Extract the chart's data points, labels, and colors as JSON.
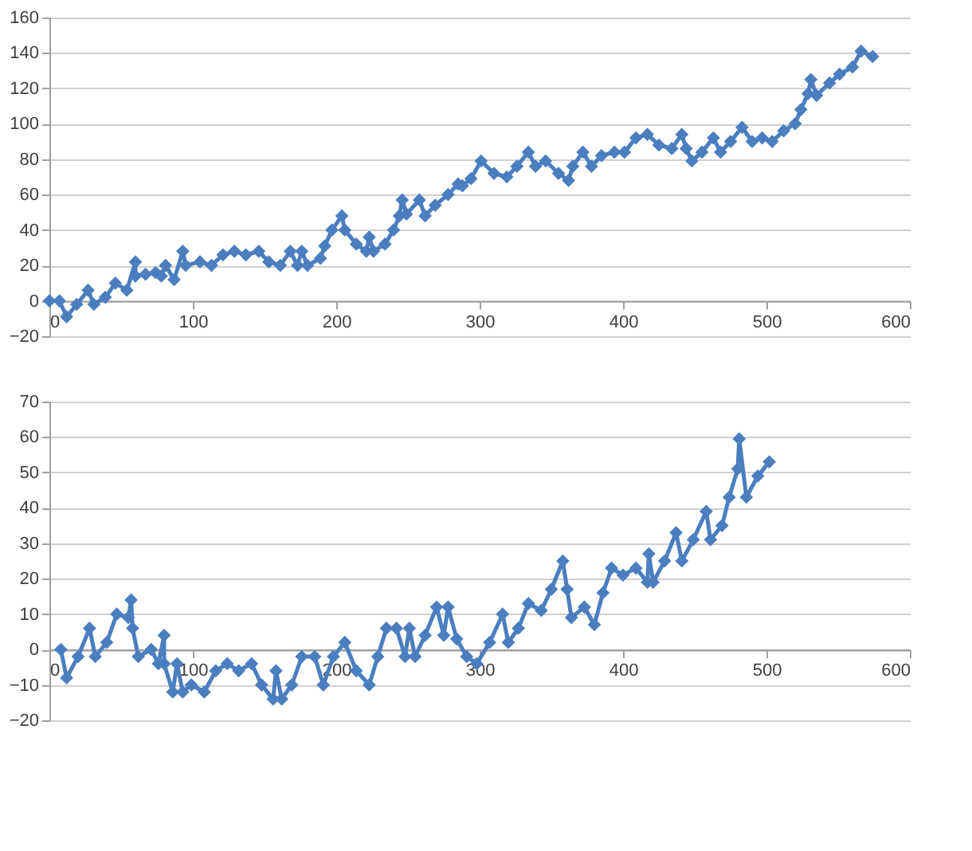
{
  "chart_data": [
    {
      "type": "line",
      "color": "#4a7ebf",
      "marker": "diamond",
      "grid": "y",
      "xlim": [
        0,
        600
      ],
      "xticks": [
        0,
        100,
        200,
        300,
        400,
        500,
        600
      ],
      "ylim": [
        -20,
        160
      ],
      "yticks": [
        -20,
        0,
        20,
        40,
        60,
        80,
        100,
        120,
        140,
        160
      ],
      "x": [
        0,
        7,
        12,
        19,
        27,
        31,
        39,
        46,
        54,
        60,
        60,
        67,
        74,
        78,
        81,
        87,
        93,
        95,
        105,
        113,
        121,
        129,
        137,
        146,
        153,
        161,
        168,
        173,
        176,
        180,
        189,
        192,
        197,
        204,
        206,
        214,
        221,
        223,
        226,
        234,
        240,
        244,
        246,
        249,
        258,
        262,
        269,
        278,
        285,
        288,
        294,
        301,
        310,
        319,
        326,
        334,
        339,
        346,
        355,
        362,
        365,
        372,
        378,
        385,
        394,
        401,
        409,
        417,
        425,
        434,
        441,
        444,
        448,
        455,
        463,
        468,
        475,
        483,
        490,
        497,
        504,
        512,
        520,
        524,
        529,
        531,
        535,
        544,
        551,
        560,
        566,
        574
      ],
      "values": [
        0,
        0,
        -9,
        -2,
        6,
        -2,
        2,
        10,
        6,
        22,
        14,
        15,
        16,
        14,
        20,
        12,
        28,
        20,
        22,
        20,
        26,
        28,
        26,
        28,
        22,
        20,
        28,
        20,
        28,
        20,
        24,
        31,
        40,
        48,
        40,
        32,
        28,
        36,
        28,
        32,
        40,
        48,
        57,
        49,
        57,
        48,
        54,
        60,
        66,
        65,
        69,
        79,
        72,
        70,
        76,
        84,
        76,
        79,
        72,
        68,
        76,
        84,
        76,
        82,
        84,
        84,
        92,
        94,
        88,
        86,
        94,
        86,
        79,
        84,
        92,
        84,
        90,
        98,
        90,
        92,
        90,
        96,
        100,
        108,
        117,
        125,
        116,
        123,
        128,
        132,
        141,
        138
      ]
    },
    {
      "type": "line",
      "color": "#4a7ebf",
      "marker": "diamond",
      "grid": "y",
      "xlim": [
        0,
        600
      ],
      "xticks": [
        0,
        100,
        200,
        300,
        400,
        500,
        600
      ],
      "ylim": [
        -20,
        70
      ],
      "yticks": [
        -20,
        -10,
        0,
        10,
        20,
        30,
        40,
        50,
        60,
        70
      ],
      "x": [
        8,
        12,
        20,
        28,
        32,
        40,
        47,
        55,
        57,
        58,
        62,
        71,
        76,
        80,
        80,
        86,
        89,
        93,
        99,
        108,
        116,
        124,
        132,
        141,
        148,
        156,
        158,
        162,
        169,
        176,
        185,
        191,
        198,
        206,
        214,
        223,
        229,
        235,
        242,
        248,
        251,
        255,
        262,
        270,
        275,
        278,
        284,
        291,
        298,
        307,
        316,
        320,
        327,
        334,
        343,
        350,
        358,
        361,
        364,
        373,
        380,
        386,
        392,
        400,
        409,
        417,
        418,
        421,
        429,
        437,
        441,
        449,
        458,
        461,
        469,
        474,
        480,
        481,
        486,
        494,
        502
      ],
      "values": [
        0,
        -8,
        -2,
        6,
        -2,
        2,
        10,
        9,
        14,
        6,
        -2,
        0,
        -4,
        4,
        -4,
        -12,
        -4,
        -12,
        -10,
        -12,
        -6,
        -4,
        -6,
        -4,
        -10,
        -14,
        -6,
        -14,
        -10,
        -2,
        -2,
        -10,
        -2,
        2,
        -6,
        -10,
        -2,
        6,
        6,
        -2,
        6,
        -2,
        4,
        12,
        4,
        12,
        3,
        -2,
        -4,
        2,
        10,
        2,
        6,
        13,
        11,
        17,
        25,
        17,
        9,
        12,
        7,
        16,
        23,
        21,
        23,
        19,
        27,
        19,
        25,
        33,
        25,
        31,
        39,
        31,
        35,
        43,
        51,
        59.5,
        43,
        49,
        53
      ]
    }
  ]
}
